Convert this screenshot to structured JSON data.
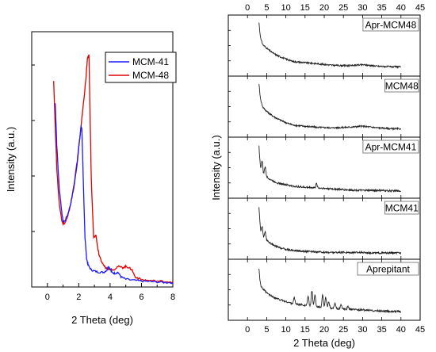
{
  "chart_data": [
    {
      "type": "line",
      "xlabel": "2 Theta (deg)",
      "ylabel": "Intensity (a.u.)",
      "xlim": [
        -1,
        8
      ],
      "xticks": [
        0,
        2,
        4,
        6,
        8
      ],
      "ylim": [
        0,
        1
      ],
      "legend_position": "top-right",
      "series": [
        {
          "name": "MCM-41",
          "color": "#1a1aff",
          "x": [
            0.5,
            0.6,
            0.75,
            0.9,
            1.0,
            1.1,
            1.3,
            1.5,
            1.7,
            1.9,
            2.05,
            2.15,
            2.2,
            2.3,
            2.4,
            2.5,
            2.6,
            2.8,
            3.0,
            3.3,
            3.6,
            3.8,
            3.9,
            4.0,
            4.1,
            4.3,
            4.5,
            4.7,
            5.0,
            5.5,
            6.0,
            6.5,
            7.0,
            7.5,
            8.0
          ],
          "y": [
            0.78,
            0.6,
            0.42,
            0.32,
            0.27,
            0.27,
            0.3,
            0.35,
            0.42,
            0.52,
            0.62,
            0.68,
            0.67,
            0.42,
            0.2,
            0.11,
            0.08,
            0.06,
            0.055,
            0.05,
            0.05,
            0.06,
            0.075,
            0.065,
            0.05,
            0.045,
            0.05,
            0.03,
            0.02,
            0.015,
            0.012,
            0.01,
            0.008,
            0.006,
            0.005
          ]
        },
        {
          "name": "MCM-48",
          "color": "#e00000",
          "x": [
            0.4,
            0.5,
            0.6,
            0.75,
            0.9,
            1.0,
            1.1,
            1.3,
            1.5,
            1.7,
            1.9,
            2.1,
            2.3,
            2.45,
            2.55,
            2.65,
            2.7,
            2.8,
            2.95,
            3.1,
            3.2,
            3.3,
            3.5,
            3.7,
            3.9,
            4.0,
            4.2,
            4.5,
            4.8,
            5.0,
            5.2,
            5.4,
            5.6,
            6.0,
            6.5,
            7.0,
            7.5,
            8.0
          ],
          "y": [
            0.88,
            0.68,
            0.5,
            0.35,
            0.28,
            0.26,
            0.26,
            0.29,
            0.35,
            0.43,
            0.53,
            0.65,
            0.78,
            0.88,
            0.97,
            0.99,
            0.82,
            0.45,
            0.2,
            0.21,
            0.16,
            0.12,
            0.09,
            0.07,
            0.065,
            0.065,
            0.06,
            0.075,
            0.07,
            0.075,
            0.07,
            0.06,
            0.03,
            0.018,
            0.014,
            0.012,
            0.01,
            0.008
          ]
        }
      ]
    },
    {
      "type": "line",
      "xlabel": "2 Theta (deg)",
      "ylabel": "Intensity (a.u.)",
      "xlim": [
        -5,
        45
      ],
      "xticks": [
        0,
        5,
        10,
        15,
        20,
        25,
        30,
        35,
        40,
        45
      ],
      "stacked_panels": true,
      "panels": [
        {
          "name": "Apr-MCM48",
          "shape": "mesoporous",
          "peaks": [],
          "x": [
            3,
            3.2,
            3.5,
            4,
            5,
            6,
            7,
            8,
            10,
            12,
            15,
            18,
            22,
            26,
            30,
            34,
            38,
            40
          ],
          "y": [
            0.98,
            0.8,
            0.65,
            0.55,
            0.48,
            0.42,
            0.37,
            0.33,
            0.27,
            0.22,
            0.2,
            0.18,
            0.15,
            0.14,
            0.16,
            0.13,
            0.12,
            0.12
          ]
        },
        {
          "name": "MCM48",
          "shape": "mesoporous",
          "peaks": [],
          "x": [
            3,
            3.2,
            3.5,
            4,
            5,
            6,
            7,
            8,
            10,
            12,
            15,
            18,
            22,
            26,
            30,
            34,
            38,
            40
          ],
          "y": [
            0.98,
            0.8,
            0.64,
            0.52,
            0.44,
            0.38,
            0.33,
            0.29,
            0.22,
            0.17,
            0.15,
            0.13,
            0.12,
            0.13,
            0.15,
            0.12,
            0.1,
            0.1
          ]
        },
        {
          "name": "Apr-MCM41",
          "shape": "crystalline",
          "peaks": [
            [
              3.8,
              0.25
            ],
            [
              4.6,
              0.18
            ],
            [
              18,
              0.08
            ]
          ],
          "x": [
            3,
            3.2,
            3.5,
            4,
            5,
            6,
            7,
            8,
            10,
            12,
            15,
            18,
            22,
            26,
            30,
            34,
            38,
            40
          ],
          "y": [
            0.95,
            0.7,
            0.45,
            0.4,
            0.35,
            0.3,
            0.26,
            0.23,
            0.2,
            0.17,
            0.15,
            0.14,
            0.12,
            0.1,
            0.09,
            0.09,
            0.08,
            0.08
          ]
        },
        {
          "name": "MCM41",
          "shape": "crystalline",
          "peaks": [
            [
              3.8,
              0.2
            ],
            [
              4.6,
              0.15
            ]
          ],
          "x": [
            3,
            3.2,
            3.5,
            4,
            5,
            6,
            7,
            8,
            10,
            12,
            15,
            18,
            22,
            26,
            30,
            34,
            38,
            40
          ],
          "y": [
            0.95,
            0.7,
            0.42,
            0.36,
            0.3,
            0.25,
            0.2,
            0.17,
            0.13,
            0.11,
            0.09,
            0.08,
            0.07,
            0.07,
            0.07,
            0.06,
            0.06,
            0.06
          ]
        },
        {
          "name": "Aprepitant",
          "shape": "crystalline",
          "peaks": [
            [
              12.2,
              0.12
            ],
            [
              15.8,
              0.18
            ],
            [
              16.8,
              0.3
            ],
            [
              17.6,
              0.22
            ],
            [
              19.6,
              0.25
            ],
            [
              20.4,
              0.2
            ],
            [
              21.2,
              0.12
            ],
            [
              22.8,
              0.1
            ],
            [
              24.4,
              0.08
            ],
            [
              26.2,
              0.06
            ]
          ],
          "x": [
            3,
            3.2,
            3.5,
            4,
            5,
            6,
            7,
            8,
            10,
            12,
            15,
            18,
            22,
            26,
            30,
            34,
            38,
            40
          ],
          "y": [
            0.95,
            0.75,
            0.6,
            0.55,
            0.47,
            0.42,
            0.38,
            0.35,
            0.3,
            0.26,
            0.23,
            0.2,
            0.17,
            0.15,
            0.14,
            0.12,
            0.11,
            0.11
          ]
        }
      ]
    }
  ]
}
